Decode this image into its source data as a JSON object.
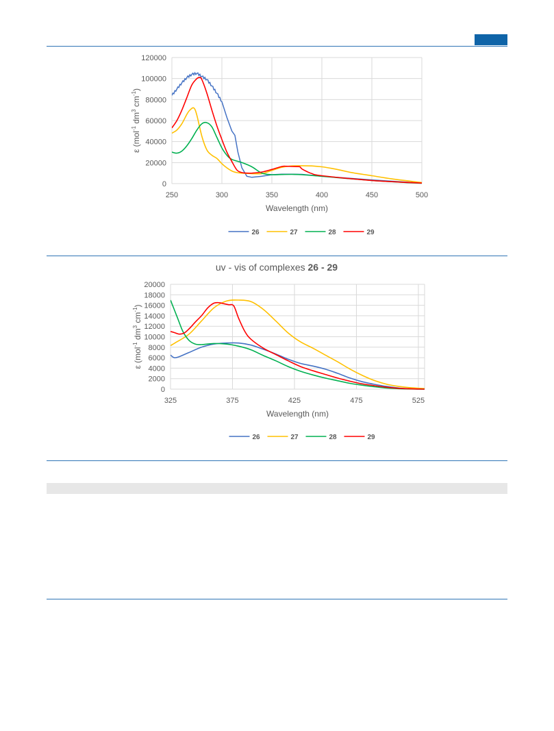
{
  "page": {
    "colors": {
      "rule": "#2e74b5",
      "corner_block": "#0f64a8",
      "grey_bar": "#e7e7e7"
    }
  },
  "chart_data": [
    {
      "type": "line",
      "title": "",
      "xlabel": "Wavelength (nm)",
      "ylabel_prefix": "ε (mol",
      "xlim": [
        250,
        500
      ],
      "ylim": [
        0,
        120000
      ],
      "x_ticks": [
        "250",
        "300",
        "350",
        "400",
        "450",
        "500"
      ],
      "y_ticks": [
        "0",
        "20000",
        "40000",
        "60000",
        "80000",
        "100000",
        "120000"
      ],
      "grid": true,
      "legend_position": "bottom",
      "series": [
        {
          "name": "26",
          "color": "#4472c4",
          "jagged": true,
          "x": [
            250,
            255,
            260,
            265,
            270,
            275,
            280,
            285,
            290,
            295,
            300,
            305,
            310,
            313,
            316,
            320,
            325,
            330,
            340,
            350,
            360,
            370,
            380,
            400,
            450,
            500
          ],
          "y": [
            84000,
            90000,
            96000,
            101000,
            104000,
            105000,
            102000,
            99000,
            93000,
            86000,
            78000,
            63000,
            50000,
            46000,
            30000,
            15000,
            7000,
            6000,
            7000,
            8500,
            9000,
            9000,
            8800,
            7000,
            3500,
            500
          ]
        },
        {
          "name": "27",
          "color": "#ffc000",
          "x": [
            250,
            255,
            260,
            265,
            268,
            272,
            275,
            280,
            285,
            290,
            295,
            300,
            305,
            310,
            315,
            320,
            330,
            340,
            350,
            360,
            370,
            380,
            390,
            400,
            410,
            420,
            430,
            450,
            470,
            500
          ],
          "y": [
            48000,
            51000,
            57000,
            66000,
            70000,
            72000,
            65000,
            45000,
            32000,
            27000,
            24000,
            19000,
            15000,
            12000,
            10500,
            10000,
            9500,
            9500,
            12500,
            15500,
            16800,
            17000,
            16800,
            16000,
            14500,
            12500,
            10500,
            7500,
            4500,
            1000
          ]
        },
        {
          "name": "28",
          "color": "#00b050",
          "x": [
            250,
            255,
            260,
            265,
            270,
            275,
            280,
            285,
            290,
            295,
            300,
            305,
            310,
            320,
            330,
            340,
            350,
            360,
            370,
            380,
            400,
            450,
            500
          ],
          "y": [
            30000,
            29000,
            31000,
            36000,
            43000,
            51000,
            57000,
            58000,
            54000,
            44000,
            34000,
            27000,
            23000,
            20000,
            16000,
            10000,
            8500,
            8700,
            8800,
            8500,
            7000,
            3000,
            300
          ]
        },
        {
          "name": "29",
          "color": "#ff0000",
          "x": [
            250,
            255,
            260,
            265,
            270,
            275,
            278,
            280,
            285,
            290,
            295,
            300,
            305,
            310,
            315,
            320,
            325,
            330,
            340,
            350,
            360,
            365,
            370,
            375,
            378,
            380,
            385,
            390,
            400,
            450,
            500
          ],
          "y": [
            53000,
            60000,
            70000,
            82000,
            94000,
            100000,
            101000,
            99000,
            86000,
            70000,
            55000,
            42000,
            30000,
            21000,
            13000,
            10500,
            10000,
            10000,
            11000,
            13500,
            16300,
            16500,
            16300,
            16200,
            16000,
            14000,
            11500,
            9500,
            7500,
            3000,
            500
          ]
        }
      ]
    },
    {
      "type": "line",
      "title_prefix": "uv - vis of complexes ",
      "title_bold": "26 - 29",
      "xlabel": "Wavelength (nm)",
      "ylabel_prefix": "ε (mol",
      "xlim": [
        325,
        530
      ],
      "ylim": [
        0,
        20000
      ],
      "x_ticks": [
        "325",
        "375",
        "425",
        "475",
        "525"
      ],
      "x_tick_values": [
        325,
        375,
        425,
        475,
        525
      ],
      "y_ticks": [
        "0",
        "2000",
        "4000",
        "6000",
        "8000",
        "10000",
        "12000",
        "14000",
        "16000",
        "18000",
        "20000"
      ],
      "grid": true,
      "legend_position": "bottom",
      "series": [
        {
          "name": "26",
          "color": "#4472c4",
          "x": [
            325,
            328,
            332,
            340,
            350,
            360,
            370,
            380,
            390,
            400,
            410,
            420,
            430,
            440,
            450,
            460,
            470,
            480,
            490,
            500,
            510,
            520,
            530
          ],
          "y": [
            6500,
            6000,
            6200,
            7000,
            8000,
            8600,
            8800,
            8800,
            8400,
            7600,
            6700,
            5700,
            4900,
            4400,
            3800,
            3000,
            2100,
            1400,
            900,
            500,
            200,
            50,
            0
          ]
        },
        {
          "name": "27",
          "color": "#ffc000",
          "x": [
            325,
            330,
            340,
            350,
            360,
            370,
            380,
            390,
            400,
            410,
            420,
            430,
            440,
            450,
            460,
            470,
            480,
            490,
            500,
            510,
            520,
            530
          ],
          "y": [
            8300,
            9000,
            10500,
            13000,
            15500,
            16800,
            17000,
            16700,
            15200,
            13000,
            10700,
            9000,
            7800,
            6500,
            5200,
            3800,
            2600,
            1600,
            900,
            500,
            250,
            100
          ]
        },
        {
          "name": "28",
          "color": "#00b050",
          "x": [
            325,
            330,
            335,
            340,
            345,
            350,
            360,
            370,
            380,
            390,
            400,
            410,
            420,
            430,
            440,
            450,
            460,
            470,
            480,
            490,
            500,
            510,
            520,
            530
          ],
          "y": [
            17000,
            14000,
            11000,
            9300,
            8600,
            8500,
            8700,
            8600,
            8200,
            7500,
            6400,
            5400,
            4300,
            3400,
            2700,
            2100,
            1600,
            1100,
            750,
            450,
            200,
            80,
            20,
            0
          ]
        },
        {
          "name": "29",
          "color": "#ff0000",
          "x": [
            325,
            328,
            332,
            336,
            340,
            345,
            350,
            355,
            360,
            364,
            368,
            372,
            376,
            380,
            385,
            390,
            400,
            410,
            420,
            430,
            440,
            450,
            460,
            470,
            480,
            490,
            500,
            510,
            520,
            530
          ],
          "y": [
            11000,
            10800,
            10500,
            10700,
            11500,
            12800,
            14000,
            15500,
            16400,
            16500,
            16300,
            16100,
            15900,
            13500,
            11000,
            9500,
            7800,
            6600,
            5400,
            4300,
            3500,
            2800,
            2100,
            1500,
            1000,
            650,
            350,
            150,
            50,
            0
          ]
        }
      ]
    }
  ]
}
